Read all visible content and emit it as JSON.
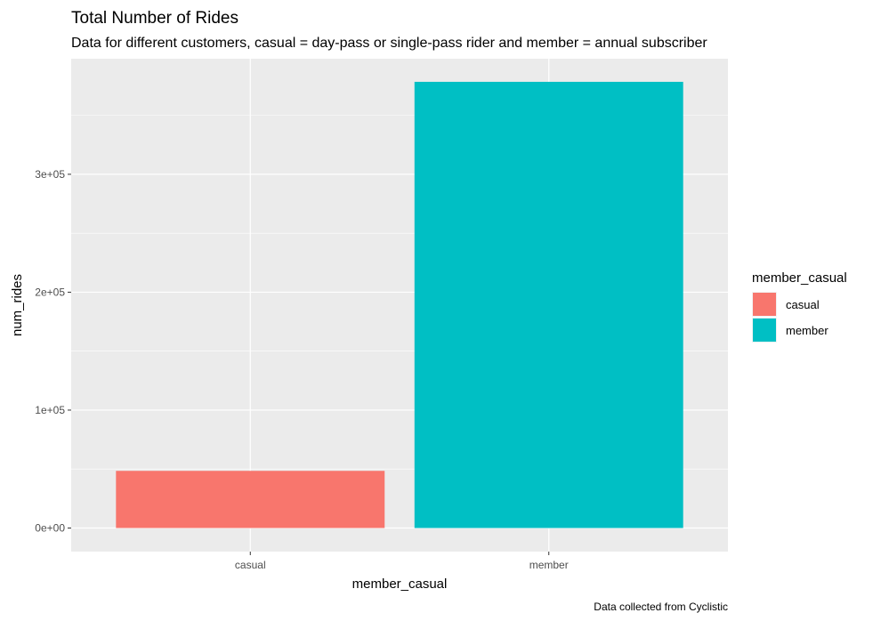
{
  "chart_data": {
    "type": "bar",
    "title": "Total Number of Rides",
    "subtitle": "Data for different customers, casual = day-pass or single-pass rider and member = annual subscriber",
    "xlabel": "member_casual",
    "ylabel": "num_rides",
    "caption": "Data collected from Cyclistic",
    "categories": [
      "casual",
      "member"
    ],
    "values": [
      48480,
      378407
    ],
    "colors": [
      "#F8766D",
      "#00BFC4"
    ],
    "ylim": [
      -20000,
      398000
    ],
    "yticks": [
      0,
      100000,
      200000,
      300000
    ],
    "ytick_labels": [
      "0e+00",
      "1e+05",
      "2e+05",
      "3e+05"
    ],
    "legend": {
      "title": "member_casual",
      "position": "right",
      "entries": [
        {
          "label": "casual",
          "color": "#F8766D"
        },
        {
          "label": "member",
          "color": "#00BFC4"
        }
      ]
    },
    "panel_background": "#EBEBEB",
    "grid": true
  }
}
